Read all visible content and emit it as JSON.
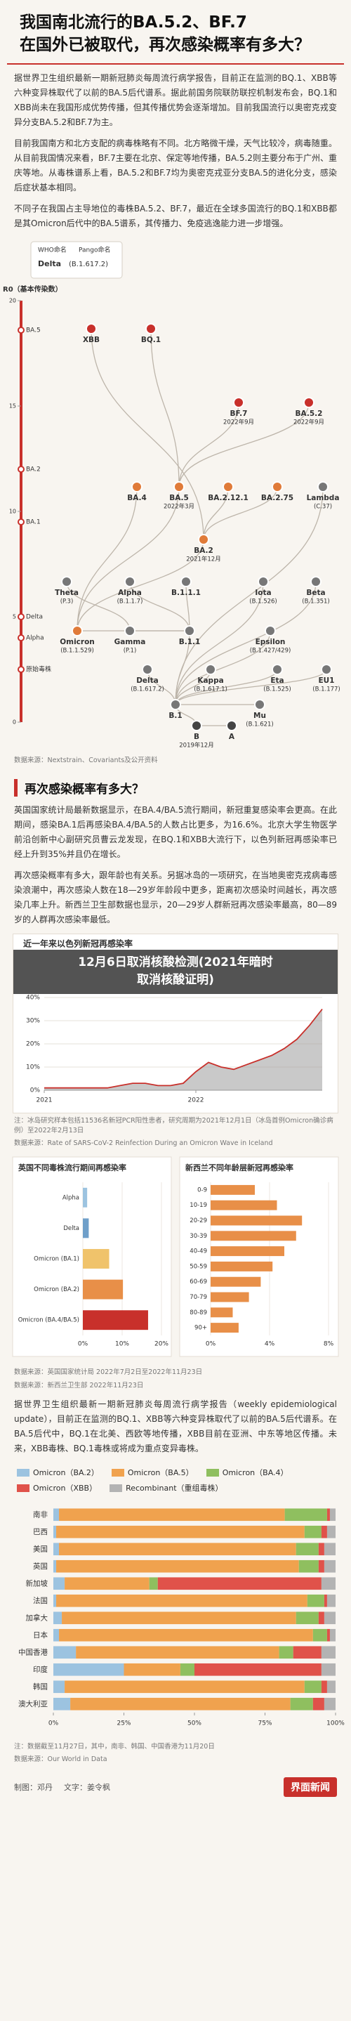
{
  "header": {
    "title": [
      "我国南北流行的BA.5.2、BF.7",
      "在国外已被取代，再次感染概率有多大？"
    ]
  },
  "intro": {
    "paragraphs": [
      "据世界卫生组织最新一期新冠肺炎每周流行病学报告，目前正在监测的BQ.1、XBB等六种变异株取代了以前的BA.5后代谱系。据此前国务院联防联控机制发布会，BQ.1和XBB尚未在我国形成优势传播，但其传播优势会逐渐增加。目前我国流行以奥密克戎变异分支BA.5.2和BF.7为主。",
      "目前我国南方和北方支配的病毒株略有不同。北方略微干燥，天气比较冷，病毒随重。从目前我国情况来看，BF.7主要在北京、保定等地传播，BA.5.2则主要分布于广州、重庆等地。从毒株谱系上看，BA.5.2和BF.7均为奥密克戎亚分支BA.5的进化分支，感染后症状基本相同。",
      "不同子在我国占主导地位的毒株BA.5.2、BF.7，最近在全球多国流行的BQ.1和XBB都是其Omicron后代中的BA.5谱系，其传播力、免疫逃逸能力进一步增强。"
    ]
  },
  "phylogeny": {
    "legend": {
      "who": "WHO命名",
      "pango": "Pango命名",
      "example": {
        "name": "Delta",
        "lineage": "(B.1.617.2)"
      }
    },
    "r0": {
      "label": "R0（基本传染数）",
      "ylim": [
        0,
        20
      ],
      "yticks": [
        0,
        5,
        10,
        15,
        20
      ],
      "color": "#c8302b",
      "items": [
        {
          "name": "BA.5",
          "value": 18.6
        },
        {
          "name": "BA.2",
          "value": 12
        },
        {
          "name": "BA.1",
          "value": 9.5
        },
        {
          "name": "Delta",
          "value": 5
        },
        {
          "name": "Alpha",
          "value": 4
        },
        {
          "name": "原始毒株",
          "value": 2.5
        }
      ]
    },
    "nodes": [
      {
        "name": "XBB",
        "color": "#c8302b"
      },
      {
        "name": "BQ.1",
        "color": "#c8302b"
      },
      {
        "name": "BF.7",
        "color": "#c8302b",
        "date": "2022年9月"
      },
      {
        "name": "BA.5.2",
        "color": "#c8302b",
        "date": "2022年9月"
      },
      {
        "name": "BA.4",
        "color": "#e07b39"
      },
      {
        "name": "BA.5",
        "color": "#e07b39",
        "date": "2022年3月"
      },
      {
        "name": "BA.2.12.1",
        "color": "#e07b39"
      },
      {
        "name": "BA.2.75",
        "color": "#e07b39"
      },
      {
        "name": "Lambda",
        "lineage": "(C.37)",
        "color": "#777777"
      },
      {
        "name": "BA.2",
        "color": "#e07b39",
        "date": "2021年12月"
      },
      {
        "name": "Theta",
        "lineage": "(P.3)",
        "color": "#777777"
      },
      {
        "name": "Alpha",
        "lineage": "(B.1.1.7)",
        "color": "#777777"
      },
      {
        "name": "B.1.1.1",
        "color": "#777777"
      },
      {
        "name": "Iota",
        "lineage": "(B.1.526)",
        "color": "#777777"
      },
      {
        "name": "Beta",
        "lineage": "(B.1.351)",
        "color": "#777777"
      },
      {
        "name": "Omicron",
        "lineage": "(B.1.1.529)",
        "color": "#e07b39"
      },
      {
        "name": "Gamma",
        "lineage": "(P.1)",
        "color": "#777777"
      },
      {
        "name": "B.1.1",
        "color": "#777777"
      },
      {
        "name": "Epsilon",
        "lineage": "(B.1.427/429)",
        "color": "#777777"
      },
      {
        "name": "Delta",
        "lineage": "(B.1.617.2)",
        "color": "#777777"
      },
      {
        "name": "Kappa",
        "lineage": "(B.1.617.1)",
        "color": "#777777"
      },
      {
        "name": "Eta",
        "lineage": "(B.1.525)",
        "color": "#777777"
      },
      {
        "name": "EU1",
        "lineage": "(B.1.177)",
        "color": "#777777"
      },
      {
        "name": "B.1",
        "color": "#777777"
      },
      {
        "name": "Mu",
        "lineage": "(B.1.621)",
        "color": "#777777"
      },
      {
        "name": "B",
        "color": "#444444",
        "date": "2019年12月"
      },
      {
        "name": "A",
        "color": "#444444"
      }
    ],
    "source": "数据来源：Nextstrain、Covariants及公开资料"
  },
  "section2": {
    "heading": "再次感染概率有多大？",
    "paragraphs": [
      "英国国家统计局最新数据显示，在BA.4/BA.5流行期间，新冠重复感染率会更高。在此期间，感染BA.1后再感染BA.4/BA.5的人数占比更多，为16.6%。北京大学生物医学前沿创新中心副研究员曹云龙发现，在BQ.1和XBB大流行下，以色列新冠再感染率已经上升到35%并且仍在增长。",
      "再次感染概率有多大，跟年龄也有关系。另据冰岛的一项研究，在当地奥密克戎病毒感染浪潮中，再次感染人数在18—29岁年龄段中更多，距离初次感染时间越长，再次感染几率上升。新西兰卫生部数据也显示，20—29岁人群新冠再次感染率最高，80—89岁的人群再次感染率最低。"
    ]
  },
  "israel_chart": {
    "type": "area",
    "title": "近一年来以色列新冠再感染率",
    "categories": [
      "2021",
      null,
      null,
      null,
      null,
      null,
      null,
      null,
      null,
      null,
      null,
      null,
      "2022",
      null,
      null,
      null,
      null,
      null,
      null,
      null,
      null,
      null,
      null
    ],
    "values": [
      1,
      1,
      1,
      1,
      1,
      1,
      2,
      3,
      3,
      2,
      2,
      3,
      8,
      12,
      10,
      9,
      11,
      13,
      15,
      18,
      22,
      28,
      35
    ],
    "color": "#9c9c9c",
    "line_color": "#c8302b",
    "ylim": [
      0,
      40
    ],
    "yticks": [
      {
        "value": 0,
        "label": "0%"
      },
      {
        "value": 10,
        "label": "10%"
      },
      {
        "value": 20,
        "label": "20%"
      },
      {
        "value": 30,
        "label": "30%"
      },
      {
        "value": 40,
        "label": "40%"
      }
    ],
    "grid": true
  },
  "banner": [
    "12月6日取消核酸检测(2021年暗时",
    "取消核酸证明)"
  ],
  "notes1": [
    "注：冰岛研究样本包括11536名新冠PCR阳性患者，研究周期为2021年12月1日（冰岛首例Omicron确诊病例）至2022年2月13日",
    "数据来源：Rate of SARS-CoV-2 Reinfection During an Omicron Wave in Iceland"
  ],
  "uk_chart": {
    "type": "bar",
    "title": "英国不同毒株流行期间再感染率",
    "categories": [
      "Alpha",
      "Delta",
      "Omicron (BA.1)",
      "Omicron (BA.2)",
      "Omicron (BA.4/BA.5)"
    ],
    "values": [
      1.1,
      1.5,
      6.7,
      10.2,
      16.6
    ],
    "colors": [
      "#9cc3e0",
      "#6f9fc9",
      "#f0c36b",
      "#e88f48",
      "#c8302b"
    ],
    "xlim": [
      0,
      20
    ],
    "xticks": [
      {
        "value": 0,
        "label": "0%"
      },
      {
        "value": 10,
        "label": "10%"
      },
      {
        "value": 20,
        "label": "20%"
      }
    ]
  },
  "nz_chart": {
    "type": "bar",
    "title": "新西兰不同年龄层新冠再感染率",
    "categories": [
      "0-9",
      "10-19",
      "20-29",
      "30-39",
      "40-49",
      "50-59",
      "60-69",
      "70-79",
      "80-89",
      "90+"
    ],
    "values": [
      3.0,
      4.5,
      6.2,
      5.8,
      5.0,
      4.2,
      3.4,
      2.6,
      1.5,
      1.9
    ],
    "color": "#e88f48",
    "xlim": [
      0,
      8
    ],
    "xticks": [
      {
        "value": 0,
        "label": "0%"
      },
      {
        "value": 4,
        "label": "4%"
      },
      {
        "value": 8,
        "label": "8%"
      }
    ]
  },
  "sources2": [
    "数据来源：英国国家统计局 2022年7月2日至2022年11月23日",
    "数据来源：新西兰卫生部 2022年11月23日"
  ],
  "section3": {
    "paragraph": "据世界卫生组织最新一期新冠肺炎每周流行病学报告（weekly epidemiological update），目前正在监测的BQ.1、XBB等六种变异株取代了以前的BA.5后代谱系。在BA.5后代中，BQ.1在北美、西欧等地传播，XBB目前在亚洲、中东等地区传播。未来，XBB毒株、BQ.1毒株或将成为重点变异毒株。"
  },
  "variant_chart": {
    "type": "stacked-bar",
    "categories": [
      "南非",
      "巴西",
      "美国",
      "英国",
      "新加坡",
      "法国",
      "加拿大",
      "日本",
      "中国香港",
      "印度",
      "韩国",
      "澳大利亚"
    ],
    "series": [
      {
        "name": "Omicron（BA.2）",
        "color": "#9cc3e0",
        "values": [
          2,
          1,
          2,
          1,
          4,
          1,
          3,
          2,
          8,
          25,
          4,
          6
        ]
      },
      {
        "name": "Omicron（BA.5）",
        "color": "#f0a24e",
        "values": [
          80,
          88,
          84,
          86,
          30,
          89,
          83,
          90,
          72,
          20,
          85,
          78
        ]
      },
      {
        "name": "Omicron（BA.4）",
        "color": "#8fbf5f",
        "values": [
          15,
          6,
          8,
          7,
          3,
          6,
          8,
          5,
          5,
          5,
          6,
          8
        ]
      },
      {
        "name": "Omicron（XBB）",
        "color": "#e0524a",
        "values": [
          1,
          2,
          2,
          2,
          58,
          1,
          2,
          1,
          10,
          45,
          2,
          4
        ]
      },
      {
        "name": "Recombinant（重组毒株）",
        "color": "#b3b3b3",
        "values": [
          2,
          3,
          4,
          4,
          5,
          3,
          4,
          2,
          5,
          5,
          3,
          4
        ]
      }
    ],
    "xlim": [
      0,
      100
    ],
    "xticks": [
      {
        "value": 0,
        "label": "0%"
      },
      {
        "value": 25,
        "label": "25%"
      },
      {
        "value": 50,
        "label": "50%"
      },
      {
        "value": 75,
        "label": "75%"
      },
      {
        "value": 100,
        "label": "100%"
      }
    ]
  },
  "notes3": [
    "注：数据截至11月27日，其中，南非、韩国、中国香港为11月20日",
    "数据来源：Our World in Data"
  ],
  "credits": {
    "items": [
      "制图：邓丹",
      "文字：姜令枫"
    ],
    "logo": "界面新闻"
  }
}
